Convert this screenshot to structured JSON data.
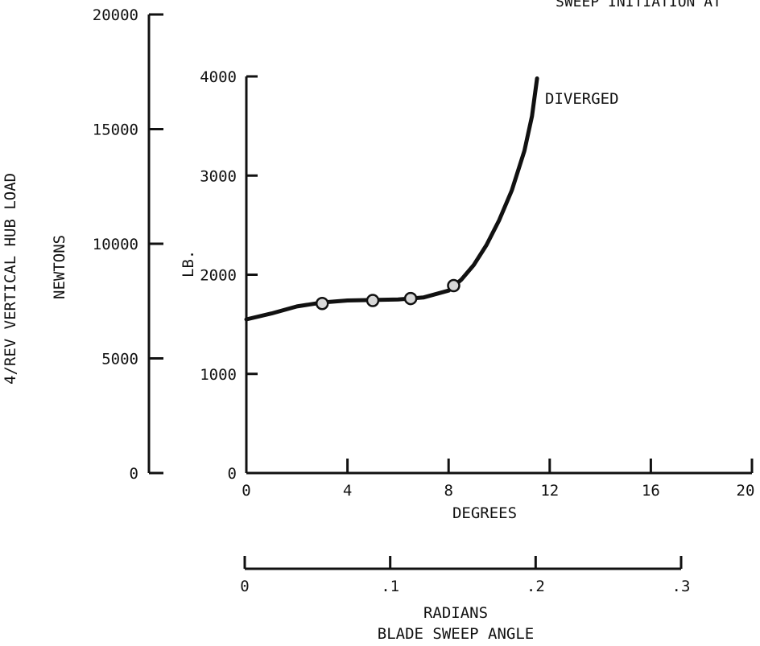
{
  "chart_data": {
    "type": "line",
    "title": "SWEEP INITIATION AT",
    "annotation": "DIVERGED",
    "xlabel_primary": "DEGREES",
    "xlabel_secondary": "RADIANS",
    "xlabel_main": "BLADE SWEEP ANGLE",
    "ylabel_main": "4/REV VERTICAL HUB LOAD",
    "ylabel_newtons": "NEWTONS",
    "ylabel_lb": "LB.",
    "x_degrees_ticks": [
      "0",
      "4",
      "8",
      "12",
      "16",
      "20"
    ],
    "x_degrees_range": [
      0,
      20
    ],
    "x_radians_ticks": [
      "0",
      ".1",
      ".2",
      ".3"
    ],
    "x_radians_range": [
      0,
      0.3
    ],
    "y_lb_ticks": [
      "0",
      "1000",
      "2000",
      "3000",
      "4000"
    ],
    "y_lb_range": [
      0,
      4000
    ],
    "y_newtons_ticks": [
      "0",
      "5000",
      "10000",
      "15000",
      "20000"
    ],
    "y_newtons_range": [
      0,
      20000
    ],
    "grid": false,
    "series": [
      {
        "x": [
          0,
          1,
          2,
          3,
          4,
          5,
          6,
          7,
          8,
          8.5,
          9,
          9.5,
          10,
          10.5,
          11,
          11.3,
          11.5
        ],
        "y": [
          1550,
          1610,
          1680,
          1720,
          1740,
          1745,
          1750,
          1770,
          1840,
          1950,
          2100,
          2300,
          2550,
          2850,
          3250,
          3600,
          3980
        ]
      }
    ],
    "markers": {
      "x": [
        3.0,
        5.0,
        6.5,
        8.2
      ],
      "y": [
        1710,
        1740,
        1760,
        1890
      ]
    }
  }
}
